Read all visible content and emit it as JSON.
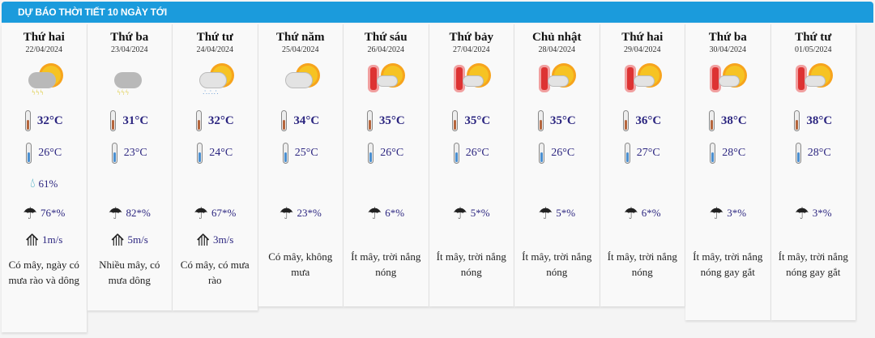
{
  "header": {
    "title": "DỰ BÁO THỜI TIẾT 10 NGÀY TỚI"
  },
  "colors": {
    "header": "#1b9bdc",
    "value_text": "#2c2680"
  },
  "days": [
    {
      "day": "Thứ hai",
      "date": "22/04/2024",
      "icon": "thunderstorm-sun-icon",
      "high": "32°C",
      "low": "26°C",
      "humidity": "61%",
      "rain": "76*%",
      "wind": "1m/s",
      "desc": "Có mây, ngày có mưa rào và dông"
    },
    {
      "day": "Thứ ba",
      "date": "23/04/2024",
      "icon": "thunderstorm-icon",
      "high": "31°C",
      "low": "23°C",
      "humidity": "",
      "rain": "82*%",
      "wind": "5m/s",
      "desc": "Nhiều mây, có mưa dông"
    },
    {
      "day": "Thứ tư",
      "date": "24/04/2024",
      "icon": "rain-sun-icon",
      "high": "32°C",
      "low": "24°C",
      "humidity": "",
      "rain": "67*%",
      "wind": "3m/s",
      "desc": "Có mây, có mưa rào"
    },
    {
      "day": "Thứ năm",
      "date": "25/04/2024",
      "icon": "partly-cloudy-icon",
      "high": "34°C",
      "low": "25°C",
      "humidity": "",
      "rain": "23*%",
      "wind": "",
      "desc": "Có mây, không mưa"
    },
    {
      "day": "Thứ sáu",
      "date": "26/04/2024",
      "icon": "hot-sun-icon",
      "high": "35°C",
      "low": "26°C",
      "humidity": "",
      "rain": "6*%",
      "wind": "",
      "desc": "Ít mây, trời nắng nóng"
    },
    {
      "day": "Thứ bảy",
      "date": "27/04/2024",
      "icon": "hot-sun-icon",
      "high": "35°C",
      "low": "26°C",
      "humidity": "",
      "rain": "5*%",
      "wind": "",
      "desc": "Ít mây, trời nắng nóng"
    },
    {
      "day": "Chủ nhật",
      "date": "28/04/2024",
      "icon": "hot-sun-icon",
      "high": "35°C",
      "low": "26°C",
      "humidity": "",
      "rain": "5*%",
      "wind": "",
      "desc": "Ít mây, trời nắng nóng"
    },
    {
      "day": "Thứ hai",
      "date": "29/04/2024",
      "icon": "hot-sun-icon",
      "high": "36°C",
      "low": "27°C",
      "humidity": "",
      "rain": "6*%",
      "wind": "",
      "desc": "Ít mây, trời nắng nóng"
    },
    {
      "day": "Thứ ba",
      "date": "30/04/2024",
      "icon": "hot-sun-icon",
      "high": "38°C",
      "low": "28°C",
      "humidity": "",
      "rain": "3*%",
      "wind": "",
      "desc": "Ít mây, trời nắng nóng gay gắt"
    },
    {
      "day": "Thứ tư",
      "date": "01/05/2024",
      "icon": "hot-sun-icon",
      "high": "38°C",
      "low": "28°C",
      "humidity": "",
      "rain": "3*%",
      "wind": "",
      "desc": "Ít mây, trời nắng nóng gay gắt"
    }
  ]
}
